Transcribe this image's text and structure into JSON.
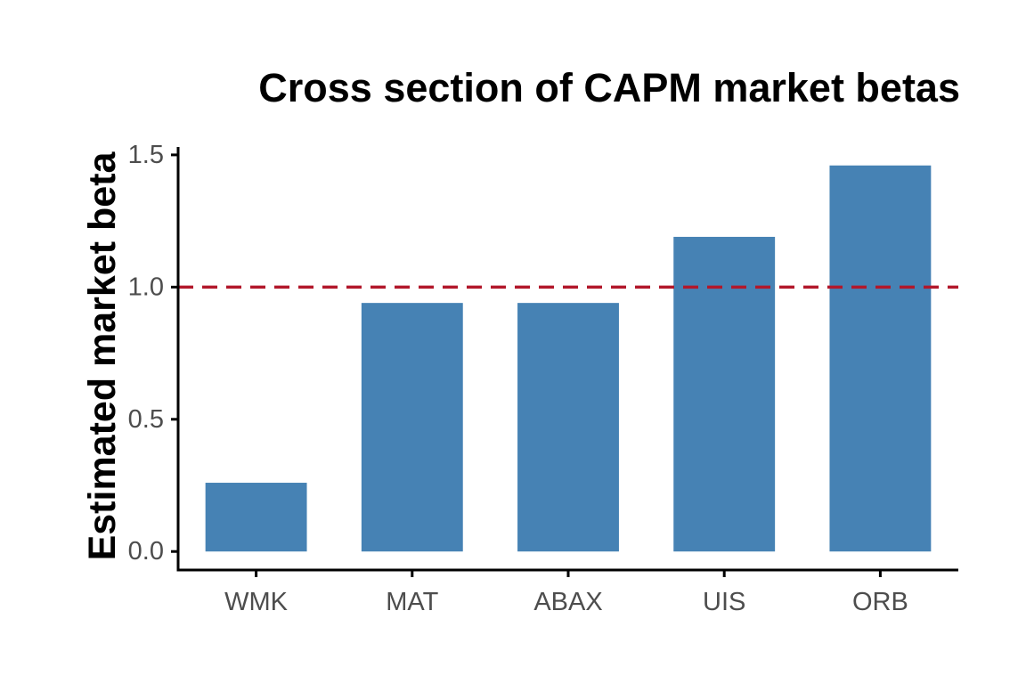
{
  "chart_data": {
    "type": "bar",
    "title": "Cross section of CAPM market betas",
    "xlabel": "",
    "ylabel": "Estimated market beta",
    "categories": [
      "WMK",
      "MAT",
      "ABAX",
      "UIS",
      "ORB"
    ],
    "values": [
      0.26,
      0.94,
      0.94,
      1.19,
      1.46
    ],
    "ylim": [
      -0.07,
      1.53
    ],
    "yticks": [
      0.0,
      0.5,
      1.0,
      1.5
    ],
    "ytick_labels": [
      "0.0",
      "0.5",
      "1.0",
      "1.5"
    ],
    "reference_line": {
      "y": 1.0,
      "style": "dashed",
      "color": "#b2182b"
    },
    "bar_color": "#4682b4",
    "grid": false,
    "legend": "none"
  }
}
